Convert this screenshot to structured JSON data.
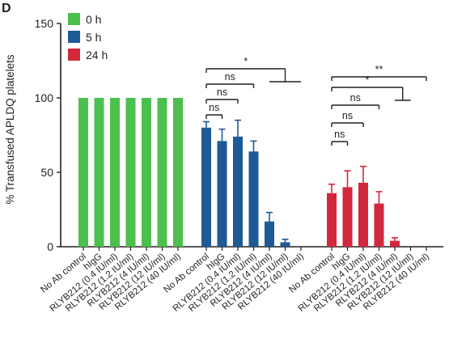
{
  "panel_letter": "D",
  "colors": {
    "0 h": "#4cc04c",
    "5 h": "#1e5a96",
    "24 h": "#d2283c",
    "axis": "#231f20"
  },
  "chart_data": {
    "type": "bar",
    "title": "",
    "xlabel": "",
    "ylabel": "% Transfused APLDQ platelets",
    "ylim": [
      0,
      150
    ],
    "yticks": [
      0,
      50,
      100,
      150
    ],
    "legend_position": "top-left",
    "categories": [
      "No Ab control",
      "hIgG",
      "RLYB212 (0.4 IU/ml)",
      "RLYB212 (1.2 IU/ml)",
      "RLYB212 (4 IU/ml)",
      "RLYB212 (12 IU/ml)",
      "RLYB212 (40 IU/ml)"
    ],
    "series": [
      {
        "name": "0 h",
        "values": [
          100,
          100,
          100,
          100,
          100,
          100,
          100
        ],
        "errors": [
          0,
          0,
          0,
          0,
          0,
          0,
          0
        ]
      },
      {
        "name": "5 h",
        "values": [
          80,
          71,
          74,
          64,
          17,
          3,
          0
        ],
        "errors": [
          4,
          8,
          11,
          7,
          6,
          2,
          0
        ]
      },
      {
        "name": "24 h",
        "values": [
          36,
          40,
          43,
          29,
          4,
          0,
          0
        ],
        "errors": [
          6,
          11,
          11,
          8,
          2,
          0,
          0
        ]
      }
    ],
    "annotations": [
      {
        "series": "5 h",
        "compare": [
          0,
          1
        ],
        "label": "ns"
      },
      {
        "series": "5 h",
        "compare": [
          0,
          2
        ],
        "label": "ns"
      },
      {
        "series": "5 h",
        "compare": [
          0,
          3
        ],
        "label": "ns"
      },
      {
        "series": "5 h",
        "compare": [
          0,
          [
            4,
            5,
            6
          ]
        ],
        "label": "*"
      },
      {
        "series": "24 h",
        "compare": [
          0,
          1
        ],
        "label": "ns"
      },
      {
        "series": "24 h",
        "compare": [
          0,
          2
        ],
        "label": "ns"
      },
      {
        "series": "24 h",
        "compare": [
          0,
          3
        ],
        "label": "ns"
      },
      {
        "series": "24 h",
        "compare": [
          0,
          [
            4,
            5
          ]
        ],
        "label": "*"
      },
      {
        "series": "24 h",
        "compare": [
          0,
          6
        ],
        "label": "**"
      }
    ]
  }
}
